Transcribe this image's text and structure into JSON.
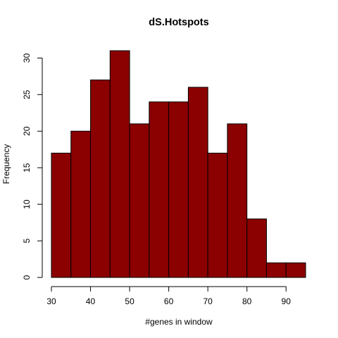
{
  "chart_data": {
    "type": "bar",
    "title": "dS.Hotspots",
    "xlabel": "#genes in window",
    "ylabel": "Frequency",
    "bin_edges": [
      30,
      35,
      40,
      45,
      50,
      55,
      60,
      65,
      70,
      75,
      80,
      85,
      90,
      95
    ],
    "values": [
      17,
      20,
      27,
      31,
      21,
      24,
      24,
      26,
      17,
      21,
      8,
      2,
      2
    ],
    "xlim": [
      30,
      95
    ],
    "ylim": [
      0,
      31
    ],
    "x_ticks": [
      30,
      40,
      50,
      60,
      70,
      80,
      90
    ],
    "y_ticks": [
      0,
      5,
      10,
      15,
      20,
      25,
      30
    ],
    "bar_color": "#8B0000",
    "grid": false,
    "legend": "none"
  }
}
